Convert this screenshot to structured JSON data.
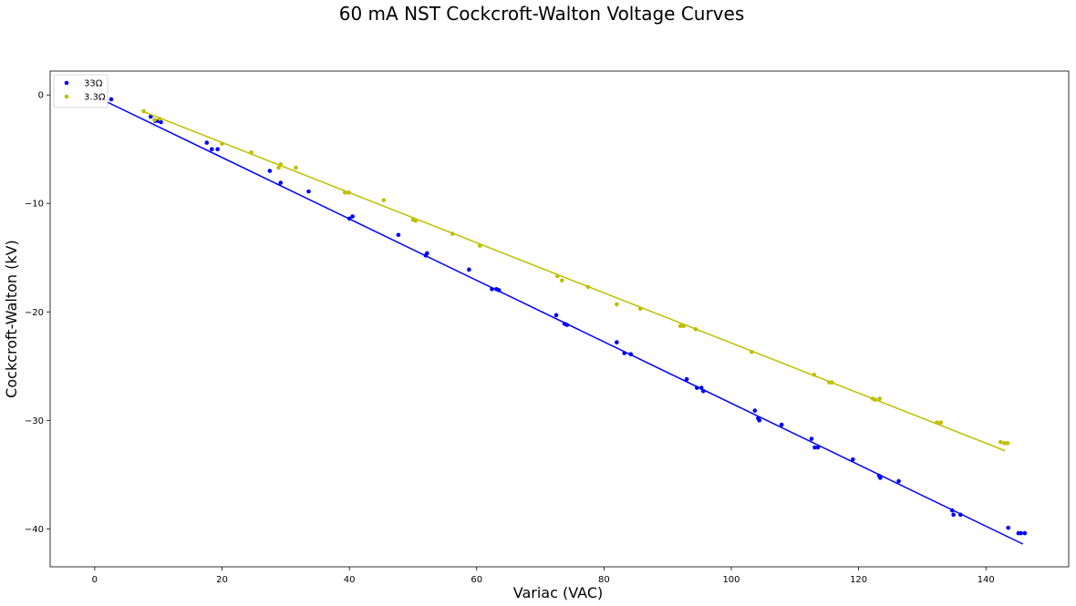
{
  "chart_data": {
    "type": "scatter",
    "title": "60 mA NST Cockcroft-Walton Voltage Curves",
    "xlabel": "Variac (VAC)",
    "ylabel": "Cockcroft-Walton (kV)",
    "xlim": [
      -7,
      153
    ],
    "ylim": [
      -43.5,
      2.2
    ],
    "xticks": [
      0,
      20,
      40,
      60,
      80,
      100,
      120,
      140
    ],
    "yticks": [
      0,
      -10,
      -20,
      -30,
      -40
    ],
    "xtick_labels": [
      "0",
      "20",
      "40",
      "60",
      "80",
      "100",
      "120",
      "140"
    ],
    "ytick_labels": [
      "0",
      "−10",
      "−20",
      "−30",
      "−40"
    ],
    "grid": false,
    "legend_position": "top-left",
    "series": [
      {
        "name": "33Ω",
        "color": "#0000ff",
        "fit": {
          "x": [
            0.0,
            145.8
          ],
          "y": [
            -0.1,
            -41.4
          ]
        },
        "points": [
          [
            2.6,
            -0.4
          ],
          [
            8.8,
            -2.0
          ],
          [
            9.5,
            -2.4
          ],
          [
            10.0,
            -2.4
          ],
          [
            10.4,
            -2.5
          ],
          [
            17.6,
            -4.4
          ],
          [
            18.4,
            -5.0
          ],
          [
            19.3,
            -5.0
          ],
          [
            27.5,
            -7.0
          ],
          [
            29.2,
            -8.1
          ],
          [
            33.6,
            -8.9
          ],
          [
            40.0,
            -11.4
          ],
          [
            40.5,
            -11.2
          ],
          [
            47.7,
            -12.9
          ],
          [
            52.0,
            -14.8
          ],
          [
            52.2,
            -14.6
          ],
          [
            58.8,
            -16.1
          ],
          [
            62.4,
            -17.9
          ],
          [
            63.1,
            -17.9
          ],
          [
            63.5,
            -18.0
          ],
          [
            72.5,
            -20.3
          ],
          [
            73.8,
            -21.1
          ],
          [
            74.2,
            -21.2
          ],
          [
            82.0,
            -22.8
          ],
          [
            83.2,
            -23.8
          ],
          [
            84.2,
            -23.9
          ],
          [
            93.0,
            -26.2
          ],
          [
            94.6,
            -27.0
          ],
          [
            95.3,
            -27.0
          ],
          [
            95.6,
            -27.3
          ],
          [
            103.7,
            -29.1
          ],
          [
            104.2,
            -29.8
          ],
          [
            104.4,
            -30.0
          ],
          [
            107.9,
            -30.4
          ],
          [
            112.6,
            -31.7
          ],
          [
            113.1,
            -32.5
          ],
          [
            113.6,
            -32.5
          ],
          [
            119.1,
            -33.6
          ],
          [
            123.2,
            -35.1
          ],
          [
            123.4,
            -35.3
          ],
          [
            126.3,
            -35.6
          ],
          [
            134.7,
            -38.3
          ],
          [
            134.9,
            -38.7
          ],
          [
            136.0,
            -38.7
          ],
          [
            143.5,
            -39.9
          ],
          [
            145.1,
            -40.4
          ],
          [
            145.5,
            -40.4
          ],
          [
            146.1,
            -40.4
          ]
        ]
      },
      {
        "name": "3.3Ω",
        "color": "#bfbf00",
        "fit": {
          "x": [
            7.5,
            143.0
          ],
          "y": [
            -1.5,
            -32.8
          ]
        },
        "points": [
          [
            7.7,
            -1.5
          ],
          [
            9.4,
            -2.3
          ],
          [
            10.2,
            -2.2
          ],
          [
            20.0,
            -4.5
          ],
          [
            24.6,
            -5.3
          ],
          [
            28.9,
            -6.7
          ],
          [
            29.2,
            -6.4
          ],
          [
            31.6,
            -6.7
          ],
          [
            39.3,
            -9.0
          ],
          [
            39.9,
            -9.0
          ],
          [
            45.4,
            -9.7
          ],
          [
            50.0,
            -11.5
          ],
          [
            50.4,
            -11.6
          ],
          [
            56.2,
            -12.8
          ],
          [
            60.5,
            -13.9
          ],
          [
            72.7,
            -16.7
          ],
          [
            73.4,
            -17.1
          ],
          [
            77.5,
            -17.7
          ],
          [
            82.0,
            -19.3
          ],
          [
            85.7,
            -19.7
          ],
          [
            92.0,
            -21.3
          ],
          [
            92.5,
            -21.3
          ],
          [
            94.4,
            -21.6
          ],
          [
            103.2,
            -23.7
          ],
          [
            113.0,
            -25.8
          ],
          [
            115.4,
            -26.5
          ],
          [
            115.8,
            -26.5
          ],
          [
            122.2,
            -28.0
          ],
          [
            122.6,
            -28.1
          ],
          [
            123.3,
            -28.0
          ],
          [
            132.3,
            -30.2
          ],
          [
            132.9,
            -30.2
          ],
          [
            142.3,
            -32.0
          ],
          [
            142.9,
            -32.1
          ],
          [
            143.4,
            -32.1
          ]
        ]
      }
    ]
  }
}
